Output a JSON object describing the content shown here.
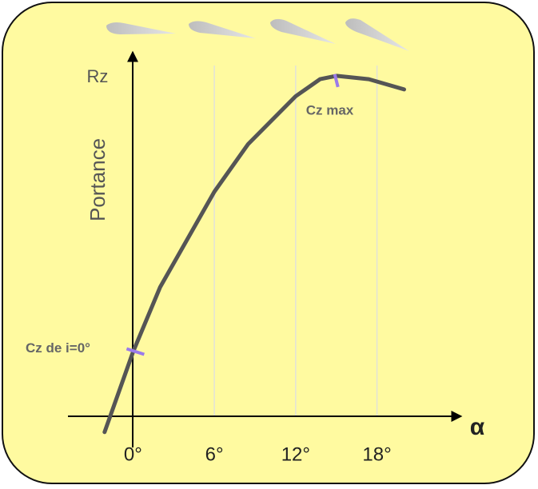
{
  "chart_data": {
    "type": "line",
    "y_label": "Rz",
    "y_title": "Portance",
    "x_label": "α",
    "x": [
      -2.1,
      0,
      2,
      6,
      8.5,
      12,
      13.8,
      15,
      17.4,
      20
    ],
    "series": [
      {
        "color": "#555555",
        "values": [
          -0.045,
          0.19,
          0.38,
          0.66,
          0.8,
          0.94,
          0.99,
          1.0,
          0.99,
          0.96
        ]
      }
    ],
    "xlim": [
      -4.8,
      24.1
    ],
    "ylim": [
      -0.09,
      1.07
    ],
    "xticks": [
      {
        "value": 0,
        "label": "0°"
      },
      {
        "value": 6,
        "label": "6°"
      },
      {
        "value": 12,
        "label": "12°"
      },
      {
        "value": 18,
        "label": "18°"
      }
    ],
    "grid": true,
    "annotations": [
      "Cz max",
      "Cz de i=0°"
    ]
  }
}
